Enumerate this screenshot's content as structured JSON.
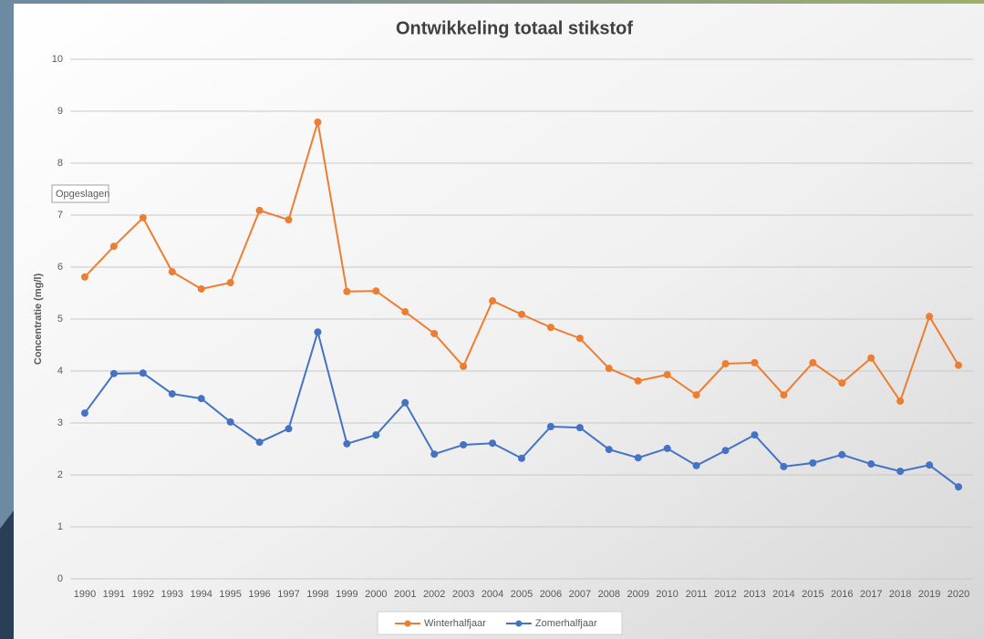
{
  "chart_data": {
    "type": "line",
    "title": "Ontwikkeling totaal stikstof",
    "y_label": "Concentratie (mg/l)",
    "tooltip": "Opgeslagen",
    "categories": [
      "1990",
      "1991",
      "1992",
      "1993",
      "1994",
      "1995",
      "1996",
      "1997",
      "1998",
      "1999",
      "2000",
      "2001",
      "2002",
      "2003",
      "2004",
      "2005",
      "2006",
      "2007",
      "2008",
      "2009",
      "2010",
      "2011",
      "2012",
      "2013",
      "2014",
      "2015",
      "2016",
      "2017",
      "2018",
      "2019",
      "2020"
    ],
    "series": [
      {
        "name": "Winterhalfjaar",
        "color": "#ed7d31",
        "values": [
          5.81,
          6.4,
          6.95,
          5.91,
          5.58,
          5.7,
          7.09,
          6.91,
          8.79,
          5.53,
          5.54,
          5.14,
          4.72,
          4.09,
          5.35,
          5.09,
          4.84,
          4.63,
          4.05,
          3.81,
          3.93,
          3.54,
          4.14,
          4.16,
          3.54,
          4.16,
          3.77,
          4.25,
          3.42,
          5.05,
          4.11
        ]
      },
      {
        "name": "Zomerhalfjaar",
        "color": "#4472c4",
        "values": [
          3.19,
          3.95,
          3.96,
          3.56,
          3.47,
          3.02,
          2.63,
          2.89,
          4.75,
          2.6,
          2.77,
          3.39,
          2.4,
          2.58,
          2.61,
          2.32,
          2.93,
          2.91,
          2.49,
          2.33,
          2.51,
          2.18,
          2.47,
          2.77,
          2.16,
          2.23,
          2.39,
          2.21,
          2.07,
          2.19,
          1.77
        ]
      }
    ],
    "ylim": [
      0,
      10
    ],
    "yticks": [
      0,
      1,
      2,
      3,
      4,
      5,
      6,
      7,
      8,
      9,
      10
    ],
    "grid": true,
    "legend": "bottom"
  }
}
